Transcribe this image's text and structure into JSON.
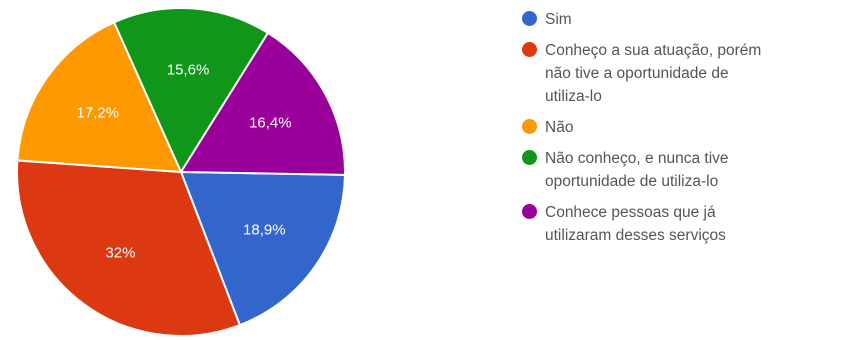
{
  "chart_data": {
    "type": "pie",
    "title": "",
    "legend_position": "right",
    "categories": [
      "Sim",
      "Conheço a sua atuação, porém\nnão tive a oportunidade de\nutiliza-lo",
      "Não",
      "Não conheço, e nunca tive\noportunidade de utiliza-lo",
      "Conhece pessoas que já\nutilizaram desses serviços"
    ],
    "values": [
      18.9,
      32,
      17.2,
      15.6,
      16.4
    ],
    "data_labels": [
      "18,9%",
      "32%",
      "17,2%",
      "15,6%",
      "16,4%"
    ],
    "colors": [
      "#3366cc",
      "#dc3912",
      "#ff9900",
      "#109618",
      "#990099"
    ]
  }
}
